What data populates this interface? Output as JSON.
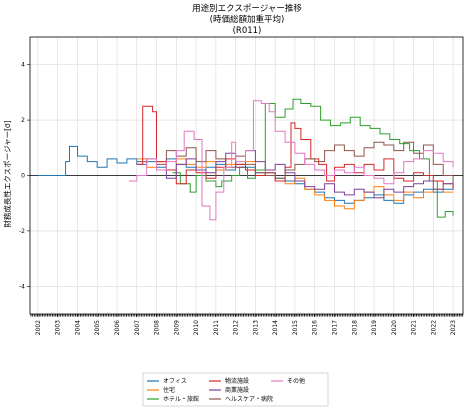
{
  "chart_data": {
    "type": "line",
    "title": "用途別エクスポージャー推移",
    "subtitle": "(時価総額加重平均)",
    "subtitle2": "(R011)",
    "ylabel": "財務成長性エクスポージャー[σ]",
    "xlabel": "",
    "ylim": [
      -5,
      5
    ],
    "xlim": [
      2001.6,
      2023.5
    ],
    "yticks": [
      -4,
      -2,
      0,
      2,
      4
    ],
    "xticks": [
      "2002",
      "2003",
      "2004",
      "2005",
      "2006",
      "2007",
      "2008",
      "2009",
      "2010",
      "2011",
      "2012",
      "2013",
      "2014",
      "2015",
      "2016",
      "2017",
      "2018",
      "2019",
      "2020",
      "2021",
      "2022",
      "2023"
    ],
    "grid": true,
    "legend_position": "bottom-outside",
    "series": [
      {
        "name": "オフィス",
        "color": "#1f77b4",
        "x": [
          2002.0,
          2003.0,
          2003.4,
          2003.6,
          2004.0,
          2004.5,
          2005.0,
          2005.5,
          2006.0,
          2006.5,
          2007.0,
          2007.5,
          2008.0,
          2008.5,
          2009.0,
          2009.5,
          2010.0,
          2010.5,
          2011.0,
          2011.5,
          2012.0,
          2012.5,
          2013.0,
          2013.5,
          2014.0,
          2014.5,
          2015.0,
          2015.5,
          2016.0,
          2016.5,
          2017.0,
          2017.5,
          2018.0,
          2018.5,
          2019.0,
          2019.5,
          2020.0,
          2020.5,
          2021.0,
          2021.5,
          2022.0,
          2022.5,
          2023.0
        ],
        "y": [
          0.0,
          0.0,
          0.5,
          1.05,
          0.7,
          0.5,
          0.3,
          0.6,
          0.45,
          0.6,
          0.4,
          0.5,
          0.3,
          0.6,
          0.4,
          0.3,
          0.2,
          0.3,
          0.4,
          0.2,
          0.4,
          0.3,
          0.1,
          0.1,
          -0.1,
          -0.2,
          -0.3,
          -0.5,
          -0.6,
          -0.8,
          -0.9,
          -1.0,
          -0.9,
          -0.8,
          -0.7,
          -0.9,
          -1.0,
          -0.7,
          -0.6,
          -0.5,
          -0.6,
          -0.5,
          -0.2
        ]
      },
      {
        "name": "住宅",
        "color": "#ff7f0e",
        "x": [
          2007.0,
          2007.5,
          2008.0,
          2008.5,
          2009.0,
          2009.5,
          2010.0,
          2010.5,
          2011.0,
          2011.5,
          2012.0,
          2012.5,
          2013.0,
          2013.5,
          2014.0,
          2014.5,
          2015.0,
          2015.5,
          2016.0,
          2016.5,
          2017.0,
          2017.5,
          2018.0,
          2018.5,
          2019.0,
          2019.5,
          2020.0,
          2020.5,
          2021.0,
          2021.5,
          2022.0,
          2022.5,
          2023.0
        ],
        "y": [
          0.6,
          0.3,
          0.5,
          0.2,
          0.6,
          0.4,
          0.3,
          0.5,
          0.2,
          0.4,
          0.3,
          0.5,
          0.2,
          0.0,
          -0.2,
          -0.3,
          -0.1,
          -0.5,
          -0.7,
          -0.9,
          -1.1,
          -1.2,
          -0.9,
          -0.6,
          -0.4,
          -0.7,
          -0.9,
          -0.6,
          -0.8,
          -0.6,
          -0.5,
          -0.6,
          -0.6
        ]
      },
      {
        "name": "ホテル・旅館",
        "color": "#2ca02c",
        "x": [
          2008.8,
          2009.2,
          2009.7,
          2010.0,
          2010.5,
          2011.0,
          2011.3,
          2011.8,
          2012.2,
          2012.6,
          2013.0,
          2013.5,
          2014.0,
          2014.5,
          2014.9,
          2015.3,
          2015.8,
          2016.3,
          2016.8,
          2017.3,
          2017.8,
          2018.3,
          2018.8,
          2019.3,
          2019.8,
          2020.3,
          2020.8,
          2021.3,
          2021.8,
          2022.2,
          2022.6,
          2023.0
        ],
        "y": [
          0.1,
          -0.3,
          -0.6,
          0.0,
          -0.2,
          -0.4,
          -0.2,
          0.0,
          0.3,
          -0.1,
          0.2,
          2.6,
          2.1,
          2.4,
          2.75,
          2.6,
          2.5,
          2.0,
          1.8,
          1.9,
          2.1,
          1.8,
          1.7,
          1.5,
          1.3,
          1.15,
          0.9,
          0.6,
          -0.2,
          -1.5,
          -1.3,
          -1.45
        ]
      },
      {
        "name": "物流施設",
        "color": "#d62728",
        "x": [
          2007.0,
          2007.3,
          2007.8,
          2008.0,
          2008.5,
          2009.0,
          2009.5,
          2010.0,
          2010.5,
          2011.0,
          2011.5,
          2012.0,
          2012.5,
          2013.0,
          2013.5,
          2014.0,
          2014.5,
          2014.8,
          2015.0,
          2015.3,
          2015.8,
          2016.2,
          2016.6,
          2017.0,
          2017.5,
          2018.0,
          2018.5,
          2019.0,
          2019.5,
          2020.0,
          2020.5,
          2021.0,
          2021.5,
          2022.0,
          2022.5,
          2023.0
        ],
        "y": [
          0.4,
          2.5,
          2.3,
          0.5,
          0.2,
          -0.3,
          0.2,
          0.1,
          -0.1,
          0.3,
          0.6,
          0.4,
          0.2,
          0.0,
          0.1,
          -0.2,
          0.3,
          1.9,
          1.7,
          1.3,
          0.6,
          0.4,
          -0.2,
          0.3,
          0.4,
          0.1,
          0.4,
          0.2,
          0.6,
          -0.1,
          -0.2,
          0.1,
          0.0,
          -0.2,
          -0.3,
          -0.5
        ]
      },
      {
        "name": "商業施設",
        "color": "#7f3f98",
        "x": [
          2008.0,
          2008.5,
          2009.0,
          2009.5,
          2010.0,
          2010.5,
          2011.0,
          2011.5,
          2012.0,
          2012.5,
          2013.0,
          2013.5,
          2014.0,
          2014.5,
          2015.0,
          2015.5,
          2016.0,
          2016.5,
          2017.0,
          2017.5,
          2018.0,
          2018.5,
          2019.0,
          2019.5,
          2020.0,
          2020.5,
          2021.0,
          2021.5,
          2022.0,
          2022.5,
          2023.0
        ],
        "y": [
          0.2,
          -0.1,
          0.4,
          0.6,
          0.2,
          0.1,
          0.5,
          0.8,
          0.3,
          0.9,
          0.5,
          0.2,
          0.4,
          0.1,
          -0.2,
          -0.4,
          -0.5,
          -0.3,
          -0.6,
          -0.7,
          -0.5,
          -0.6,
          -0.8,
          -0.5,
          -0.6,
          -0.4,
          -0.3,
          -0.2,
          -0.5,
          -0.3,
          -0.3
        ]
      },
      {
        "name": "ヘルスケア・病院",
        "color": "#8c564b",
        "x": [
          2007.0,
          2007.5,
          2008.0,
          2008.5,
          2009.0,
          2009.5,
          2010.0,
          2010.5,
          2011.0,
          2011.5,
          2012.0,
          2012.5,
          2013.0,
          2013.5,
          2014.0,
          2014.5,
          2015.0,
          2015.5,
          2016.0,
          2016.5,
          2017.0,
          2017.5,
          2018.0,
          2018.5,
          2019.0,
          2019.5,
          2020.0,
          2020.5,
          2021.0,
          2021.5,
          2022.0,
          2022.5,
          2023.0
        ],
        "y": [
          0.5,
          0.6,
          0.4,
          0.9,
          0.7,
          1.0,
          0.5,
          0.9,
          0.6,
          0.3,
          0.7,
          0.4,
          0.1,
          0.0,
          -0.1,
          0.2,
          0.4,
          0.6,
          0.5,
          0.9,
          1.1,
          0.9,
          0.7,
          1.0,
          1.2,
          1.1,
          0.9,
          1.2,
          0.8,
          1.1,
          0.4,
          0.0,
          -0.3
        ]
      },
      {
        "name": "その他",
        "color": "#e377c2",
        "x": [
          2006.6,
          2007.0,
          2007.5,
          2008.0,
          2008.5,
          2009.0,
          2009.4,
          2009.9,
          2010.3,
          2010.7,
          2011.0,
          2011.4,
          2011.8,
          2012.0,
          2012.5,
          2012.9,
          2013.3,
          2013.7,
          2014.0,
          2014.5,
          2015.0,
          2015.5,
          2016.0,
          2016.5,
          2017.0,
          2017.5,
          2018.0,
          2018.5,
          2019.0,
          2019.5,
          2020.0,
          2020.5,
          2021.0,
          2021.5,
          2022.0,
          2022.5,
          2023.0
        ],
        "y": [
          -0.2,
          0.0,
          0.6,
          0.2,
          0.5,
          0.9,
          1.6,
          1.3,
          -1.1,
          -1.6,
          -0.6,
          0.3,
          1.2,
          0.5,
          0.9,
          2.7,
          2.6,
          2.3,
          1.6,
          1.2,
          0.8,
          0.4,
          0.2,
          0.0,
          0.2,
          0.1,
          0.3,
          0.0,
          -0.1,
          -0.3,
          0.1,
          0.5,
          0.6,
          0.9,
          0.8,
          0.5,
          0.3
        ]
      }
    ]
  }
}
